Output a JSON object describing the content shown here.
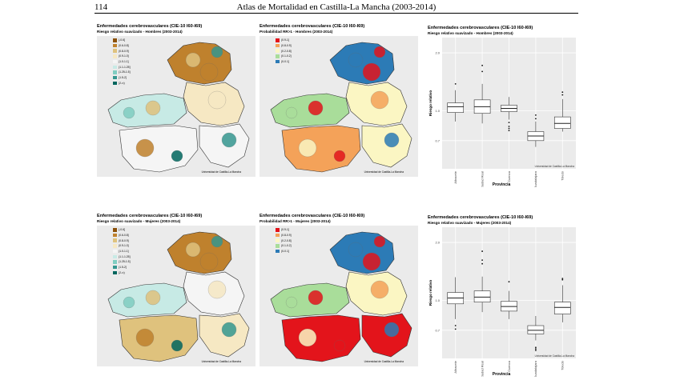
{
  "page": {
    "number": "114",
    "running_title": "Atlas de Mortalidad en Castilla-La Mancha (2003-2014)"
  },
  "colors": {
    "rr_scale": [
      "#8c510a",
      "#bf812d",
      "#dfc27d",
      "#f6e8c3",
      "#f5f5f5",
      "#c7eae5",
      "#80cdc1",
      "#35978f",
      "#01665e"
    ],
    "prob_scale": [
      "#e3141b",
      "#f4a259",
      "#fbf6c3",
      "#a9dd9a",
      "#2c7bb6"
    ],
    "panel_bg": "#ebebeb"
  },
  "legend_rr": [
    "(-0.6]",
    "(0.6-0.8]",
    "(0.8-0.9]",
    "(0.9-1.0]",
    "(1.0-1.1]",
    "(1.1-1.25]",
    "(1.25-1.5]",
    "(1.5-2]",
    "(2-∞)"
  ],
  "legend_prob": [
    "(0.9-1]",
    "(0.8-0.9]",
    "(0.2-0.8]",
    "(0.1-0.2]",
    "(0-0.1]"
  ],
  "credit": "Universidad de Castilla-La Mancha",
  "panels": {
    "men_rr": {
      "title": "Enfermedades cerebrovasculares (CIE-10 I60-I69)",
      "subtitle": "Riesgo relativo suavizado - Hombres (2003-2014)"
    },
    "men_prob": {
      "title": "Enfermedades cerebrovasculares (CIE-10 I60-I69)",
      "subtitle": "Probabilidad RR>1 - Hombres (2003-2014)"
    },
    "men_box": {
      "title": "Enfermedades cerebrovasculares (CIE-10 I60-I69)",
      "subtitle": "Riesgo relativo suavizado - Hombres (2003-2014)"
    },
    "women_rr": {
      "title": "Enfermedades cerebrovasculares (CIE-10 I60-I69)",
      "subtitle": "Riesgo relativo suavizado - Mujeres (2003-2014)"
    },
    "women_prob": {
      "title": "Enfermedades cerebrovasculares (CIE-10 I60-I69)",
      "subtitle": "Probabilidad RR>1 - Mujeres (2003-2014)"
    },
    "women_box": {
      "title": "Enfermedades cerebrovasculares (CIE-10 I60-I69)",
      "subtitle": "Riesgo relativo suavizado - Mujeres (2003-2014)"
    }
  },
  "maps": {
    "men_rr": {
      "Guadalajara": 1,
      "Cuenca": 3,
      "Toledo": 5,
      "Albacete": 4,
      "Ciudad Real": 4,
      "spots": [
        7,
        2,
        1,
        6,
        2,
        1,
        8,
        7,
        3
      ]
    },
    "men_prob": {
      "Guadalajara": 4,
      "Cuenca": 2,
      "Toledo": 3,
      "Albacete": 2,
      "Ciudad Real": 1,
      "spots": [
        0,
        4,
        0,
        3,
        0,
        2,
        0,
        4,
        1
      ]
    },
    "women_rr": {
      "Guadalajara": 1,
      "Cuenca": 4,
      "Toledo": 5,
      "Albacete": 3,
      "Ciudad Real": 2,
      "spots": [
        7,
        2,
        1,
        6,
        2,
        1,
        8,
        7,
        3
      ]
    },
    "women_prob": {
      "Guadalajara": 4,
      "Cuenca": 2,
      "Toledo": 3,
      "Albacete": 0,
      "Ciudad Real": 0,
      "spots": [
        0,
        4,
        0,
        3,
        0,
        2,
        0,
        4,
        1
      ]
    }
  },
  "chart_data": [
    {
      "type": "boxplot",
      "title": "Enfermedades cerebrovasculares (CIE-10 I60-I69)",
      "subtitle": "Riesgo relativo suavizado - Hombres (2003-2014)",
      "xlabel": "Provincia",
      "ylabel": "Riesgo relativo",
      "y_scale": "log",
      "ylim": [
        0.5,
        2.4
      ],
      "yticks": [
        "2.0",
        "1.0",
        "0.7"
      ],
      "ytick_values": [
        2.0,
        1.0,
        0.7
      ],
      "categories": [
        "Albacete",
        "Ciudad Real",
        "Cuenca",
        "Guadalajara",
        "Toledo"
      ],
      "boxes": [
        {
          "name": "Albacete",
          "whisker_low": 0.88,
          "q1": 0.98,
          "median": 1.05,
          "q3": 1.1,
          "whisker_high": 1.28,
          "outliers": [
            1.38
          ]
        },
        {
          "name": "Ciudad Real",
          "whisker_low": 0.86,
          "q1": 0.97,
          "median": 1.05,
          "q3": 1.14,
          "whisker_high": 1.38,
          "outliers": [
            1.6,
            1.72
          ]
        },
        {
          "name": "Cuenca",
          "whisker_low": 0.9,
          "q1": 0.99,
          "median": 1.03,
          "q3": 1.07,
          "whisker_high": 1.18,
          "outliers": [
            0.83,
            0.81,
            0.79,
            0.87
          ]
        },
        {
          "name": "Guadalajara",
          "whisker_low": 0.65,
          "q1": 0.7,
          "median": 0.74,
          "q3": 0.78,
          "whisker_high": 0.88,
          "outliers": [
            0.95,
            0.91
          ]
        },
        {
          "name": "Toledo",
          "whisker_low": 0.78,
          "q1": 0.81,
          "median": 0.86,
          "q3": 0.93,
          "whisker_high": 1.15,
          "outliers": [
            1.25,
            1.21
          ]
        }
      ]
    },
    {
      "type": "boxplot",
      "title": "Enfermedades cerebrovasculares (CIE-10 I60-I69)",
      "subtitle": "Riesgo relativo suavizado - Mujeres (2003-2014)",
      "xlabel": "Provincia",
      "ylabel": "Riesgo relativo",
      "y_scale": "log",
      "ylim": [
        0.5,
        2.4
      ],
      "yticks": [
        "2.0",
        "1.0",
        "0.7"
      ],
      "ytick_values": [
        2.0,
        1.0,
        0.7
      ],
      "categories": [
        "Albacete",
        "Ciudad Real",
        "Cuenca",
        "Guadalajara",
        "Toledo"
      ],
      "boxes": [
        {
          "name": "Albacete",
          "whisker_low": 0.8,
          "q1": 0.96,
          "median": 1.03,
          "q3": 1.1,
          "whisker_high": 1.32,
          "outliers": [
            0.74,
            0.71
          ]
        },
        {
          "name": "Ciudad Real",
          "whisker_low": 0.87,
          "q1": 0.98,
          "median": 1.04,
          "q3": 1.12,
          "whisker_high": 1.33,
          "outliers": [
            1.55,
            1.62,
            1.8
          ]
        },
        {
          "name": "Cuenca",
          "whisker_low": 0.8,
          "q1": 0.88,
          "median": 0.93,
          "q3": 0.99,
          "whisker_high": 1.12,
          "outliers": [
            1.25
          ]
        },
        {
          "name": "Guadalajara",
          "whisker_low": 0.62,
          "q1": 0.67,
          "median": 0.7,
          "q3": 0.74,
          "whisker_high": 0.83,
          "outliers": [
            0.57,
            0.56,
            0.55
          ]
        },
        {
          "name": "Toledo",
          "whisker_low": 0.77,
          "q1": 0.85,
          "median": 0.92,
          "q3": 0.98,
          "whisker_high": 1.2,
          "outliers": [
            1.28,
            1.3
          ]
        }
      ]
    }
  ]
}
